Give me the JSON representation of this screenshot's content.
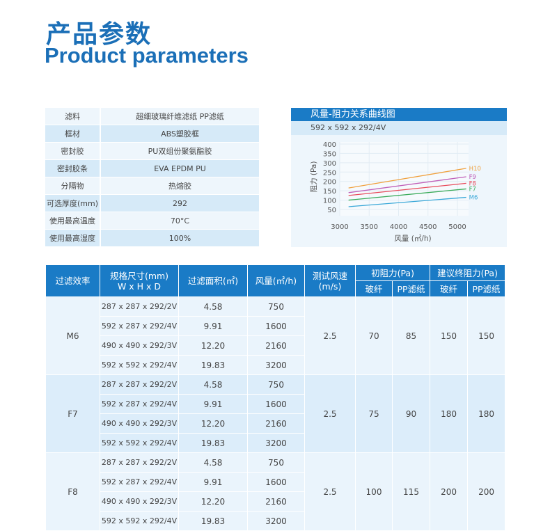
{
  "title_cn": "产品参数",
  "title_en": "Product parameters",
  "spec": [
    {
      "k": "滤料",
      "v": "超细玻璃纤维滤纸  PP滤纸"
    },
    {
      "k": "框材",
      "v": "ABS塑胶框"
    },
    {
      "k": "密封胶",
      "v": "PU双组份聚氨酯胶"
    },
    {
      "k": "密封胶条",
      "v": "EVA  EPDM  PU"
    },
    {
      "k": "分隔物",
      "v": "热熔胶"
    },
    {
      "k": "可选厚度(mm)",
      "v": "292"
    },
    {
      "k": "使用最高温度",
      "v": "70°C"
    },
    {
      "k": "使用最高湿度",
      "v": "100%"
    }
  ],
  "chart_data": {
    "type": "line",
    "title": "风量-阻力关系曲线图",
    "subtitle": "592 x 592 x 292/4V",
    "xlabel": "风量 (㎡/h)",
    "ylabel": "阻力 (Pa)",
    "xlim": [
      3000,
      5400
    ],
    "ylim": [
      50,
      400
    ],
    "xticks": [
      "3000",
      "3500",
      "4000",
      "4500",
      "5000"
    ],
    "yticks": [
      "400",
      "350",
      "300",
      "250",
      "200",
      "150",
      "100",
      "50"
    ],
    "grid": true,
    "series": [
      {
        "name": "H10",
        "color": "#f0a03c",
        "x": [
          3150,
          5150
        ],
        "y": [
          165,
          270
        ]
      },
      {
        "name": "F9",
        "color": "#c060b8",
        "x": [
          3150,
          5150
        ],
        "y": [
          140,
          225
        ]
      },
      {
        "name": "F8",
        "color": "#e84a5a",
        "x": [
          3150,
          5150
        ],
        "y": [
          125,
          190
        ]
      },
      {
        "name": "F7",
        "color": "#3aab5a",
        "x": [
          3150,
          5150
        ],
        "y": [
          100,
          160
        ]
      },
      {
        "name": "M6",
        "color": "#3aa8d8",
        "x": [
          3150,
          5150
        ],
        "y": [
          65,
          115
        ]
      }
    ]
  },
  "table": {
    "headers": {
      "eff": "过滤效率",
      "size1": "规格尺寸(mm)",
      "size2": "W x H x D",
      "area": "过滤面积(㎡)",
      "flow": "风量(㎡/h)",
      "speed1": "测试风速",
      "speed2": "(m/s)",
      "init": "初阻力(Pa)",
      "final": "建议终阻力(Pa)",
      "glass": "玻纤",
      "pp": "PP滤纸"
    },
    "groups": [
      {
        "eff": "M6",
        "speed": "2.5",
        "init_glass": "70",
        "init_pp": "85",
        "final_glass": "150",
        "final_pp": "150",
        "rows": [
          {
            "size": "287 x 287 x 292/2V",
            "area": "4.58",
            "flow": "750"
          },
          {
            "size": "592 x 287 x 292/4V",
            "area": "9.91",
            "flow": "1600"
          },
          {
            "size": "490 x 490 x 292/3V",
            "area": "12.20",
            "flow": "2160"
          },
          {
            "size": "592 x 592 x 292/4V",
            "area": "19.83",
            "flow": "3200"
          }
        ]
      },
      {
        "eff": "F7",
        "speed": "2.5",
        "init_glass": "75",
        "init_pp": "90",
        "final_glass": "180",
        "final_pp": "180",
        "rows": [
          {
            "size": "287 x 287 x 292/2V",
            "area": "4.58",
            "flow": "750"
          },
          {
            "size": "592 x 287 x 292/4V",
            "area": "9.91",
            "flow": "1600"
          },
          {
            "size": "490 x 490 x 292/3V",
            "area": "12.20",
            "flow": "2160"
          },
          {
            "size": "592 x 592 x 292/4V",
            "area": "19.83",
            "flow": "3200"
          }
        ]
      },
      {
        "eff": "F8",
        "speed": "2.5",
        "init_glass": "100",
        "init_pp": "115",
        "final_glass": "200",
        "final_pp": "200",
        "rows": [
          {
            "size": "287 x 287 x 292/2V",
            "area": "4.58",
            "flow": "750"
          },
          {
            "size": "592 x 287 x 292/4V",
            "area": "9.91",
            "flow": "1600"
          },
          {
            "size": "490 x 490 x 292/3V",
            "area": "12.20",
            "flow": "2160"
          },
          {
            "size": "592 x 592 x 292/4V",
            "area": "19.83",
            "flow": "3200"
          }
        ]
      }
    ]
  }
}
